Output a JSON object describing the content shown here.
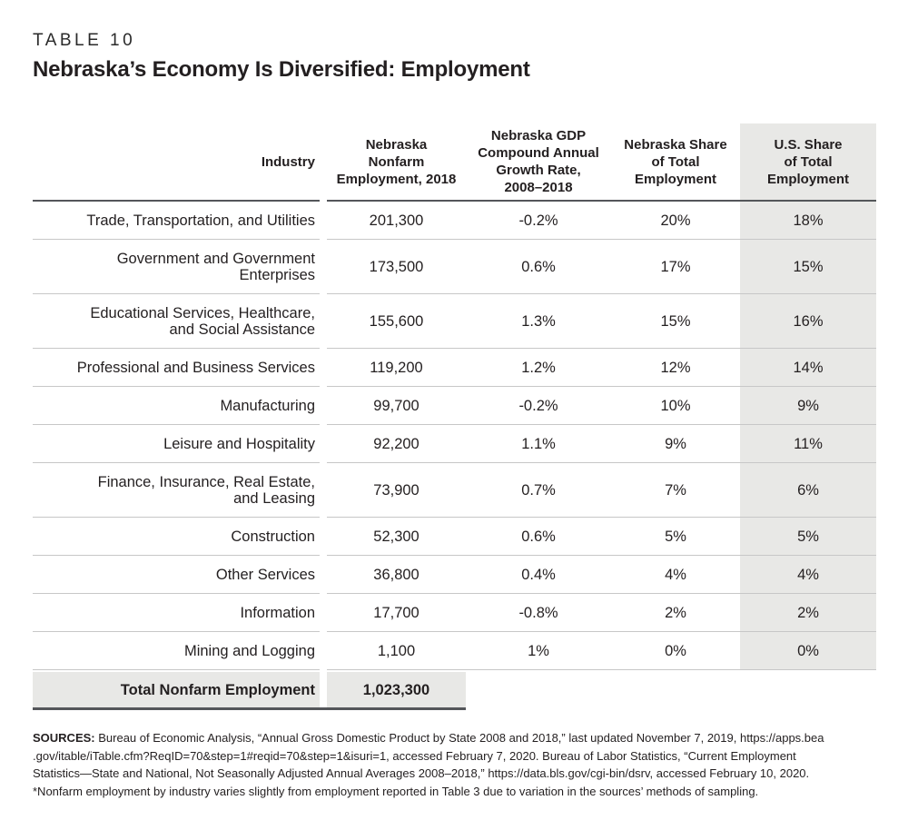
{
  "page": {
    "eyebrow": "TABLE 10",
    "title": "Nebraska’s Economy Is Diversified: Employment"
  },
  "colors": {
    "column_shade": "#e8e8e6",
    "row_divider": "#c7c7c7",
    "dark_rule": "#54565a",
    "text": "#231f20"
  },
  "table": {
    "headers": {
      "industry": "Industry",
      "employment": "Nebraska\nNonfarm\nEmployment, 2018",
      "growth": "Nebraska GDP\nCompound Annual\nGrowth Rate,\n2008–2018",
      "ne_share": "Nebraska Share\nof Total\nEmployment",
      "us_share": "U.S. Share\nof Total\nEmployment"
    },
    "rows": [
      {
        "industry": "Trade, Transportation, and Utilities",
        "employment": "201,300",
        "growth": "-0.2%",
        "ne_share": "20%",
        "us_share": "18%"
      },
      {
        "industry": "Government and Government\nEnterprises",
        "employment": "173,500",
        "growth": "0.6%",
        "ne_share": "17%",
        "us_share": "15%"
      },
      {
        "industry": "Educational Services, Healthcare,\nand Social Assistance",
        "employment": "155,600",
        "growth": "1.3%",
        "ne_share": "15%",
        "us_share": "16%"
      },
      {
        "industry": "Professional and Business Services",
        "employment": "119,200",
        "growth": "1.2%",
        "ne_share": "12%",
        "us_share": "14%"
      },
      {
        "industry": "Manufacturing",
        "employment": "99,700",
        "growth": "-0.2%",
        "ne_share": "10%",
        "us_share": "9%"
      },
      {
        "industry": "Leisure and Hospitality",
        "employment": "92,200",
        "growth": "1.1%",
        "ne_share": "9%",
        "us_share": "11%"
      },
      {
        "industry": "Finance, Insurance, Real Estate,\nand Leasing",
        "employment": "73,900",
        "growth": "0.7%",
        "ne_share": "7%",
        "us_share": "6%"
      },
      {
        "industry": "Construction",
        "employment": "52,300",
        "growth": "0.6%",
        "ne_share": "5%",
        "us_share": "5%"
      },
      {
        "industry": "Other Services",
        "employment": "36,800",
        "growth": "0.4%",
        "ne_share": "4%",
        "us_share": "4%"
      },
      {
        "industry": "Information",
        "employment": "17,700",
        "growth": "-0.8%",
        "ne_share": "2%",
        "us_share": "2%"
      },
      {
        "industry": "Mining and Logging",
        "employment": "1,100",
        "growth": "1%",
        "ne_share": "0%",
        "us_share": "0%"
      }
    ],
    "total": {
      "label": "Total Nonfarm Employment",
      "value": "1,023,300"
    }
  },
  "sources": {
    "label": "SOURCES:",
    "line1": " Bureau of Economic Analysis, “Annual Gross Domestic Product by State 2008 and 2018,” last updated November 7, 2019, https://apps.bea",
    "line2": ".gov/itable/iTable.cfm?ReqID=70&step=1#reqid=70&step=1&isuri=1, accessed February 7, 2020. Bureau of Labor Statistics, “Current Employment",
    "line3": "Statistics—State and National, Not Seasonally Adjusted Annual Averages 2008–2018,” https://data.bls.gov/cgi-bin/dsrv, accessed February 10, 2020.",
    "line4": "*Nonfarm employment by industry varies slightly from employment reported in Table 3 due to variation in the sources’ methods of sampling."
  }
}
